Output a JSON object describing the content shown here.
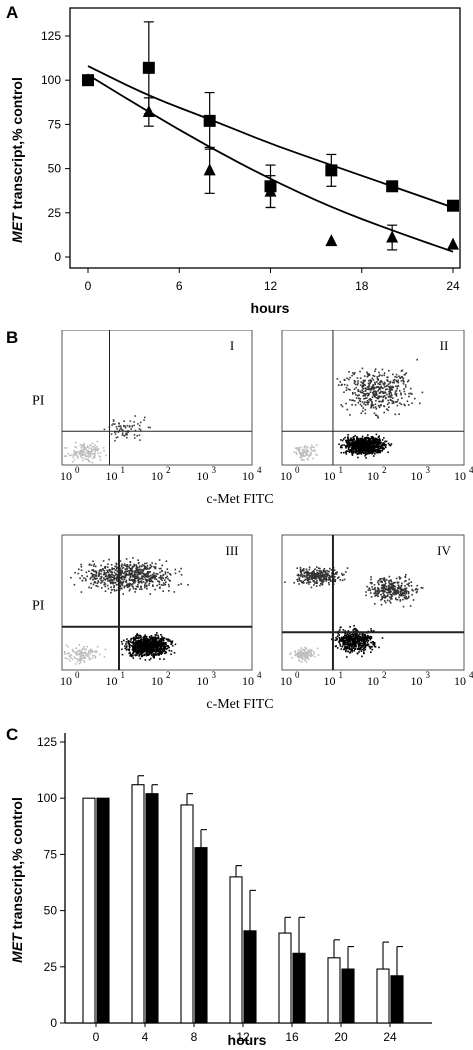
{
  "panels": {
    "a": "A",
    "b": "B",
    "c": "C"
  },
  "chart_data": [
    {
      "type": "scatter",
      "panel": "A",
      "ylabel_italic": "MET",
      "ylabel_rest": " transcript,% control",
      "xlabel": "hours",
      "xlim": [
        0,
        24
      ],
      "ylim": [
        0,
        125
      ],
      "xticks": [
        0,
        6,
        12,
        18,
        24
      ],
      "yticks": [
        0,
        25,
        50,
        75,
        100,
        125
      ],
      "series": [
        {
          "marker": "square",
          "x": [
            0,
            4,
            8,
            12,
            16,
            20,
            24
          ],
          "y": [
            100,
            107,
            77,
            40,
            49,
            40,
            29
          ],
          "err": [
            0,
            26,
            16,
            12,
            9,
            0,
            0
          ],
          "fit": [
            108,
            91,
            78,
            64,
            52,
            40,
            28
          ]
        },
        {
          "marker": "triangle",
          "x": [
            0,
            4,
            8,
            12,
            16,
            20,
            24
          ],
          "y": [
            100,
            82,
            49,
            37,
            9,
            11,
            7
          ],
          "err": [
            0,
            8,
            13,
            9,
            0,
            7,
            0
          ],
          "fit": [
            103,
            82,
            62,
            44,
            28,
            15,
            3
          ]
        }
      ]
    },
    {
      "type": "scatter",
      "panel": "B",
      "ylabel": "PI",
      "xlabel": "c-Met FITC",
      "xticks": [
        "10",
        "10",
        "10",
        "10",
        "10"
      ],
      "xtick_exps": [
        "0",
        "1",
        "2",
        "3",
        "4"
      ],
      "quadrants": [
        "I",
        "II",
        "III",
        "IV"
      ]
    },
    {
      "type": "bar",
      "panel": "C",
      "ylabel_italic": "MET",
      "ylabel_rest": " transcript,% control",
      "xlabel": "hours",
      "categories": [
        "0",
        "4",
        "8",
        "12",
        "16",
        "20",
        "24"
      ],
      "ylim": [
        0,
        125
      ],
      "yticks": [
        0,
        25,
        50,
        75,
        100,
        125
      ],
      "series": [
        {
          "fill": "white",
          "values": [
            100,
            106,
            97,
            65,
            40,
            29,
            24
          ],
          "err": [
            0,
            4,
            5,
            5,
            7,
            8,
            12
          ]
        },
        {
          "fill": "black",
          "values": [
            100,
            102,
            78,
            41,
            31,
            24,
            21
          ],
          "err": [
            0,
            4,
            8,
            18,
            16,
            10,
            13
          ]
        }
      ]
    }
  ]
}
